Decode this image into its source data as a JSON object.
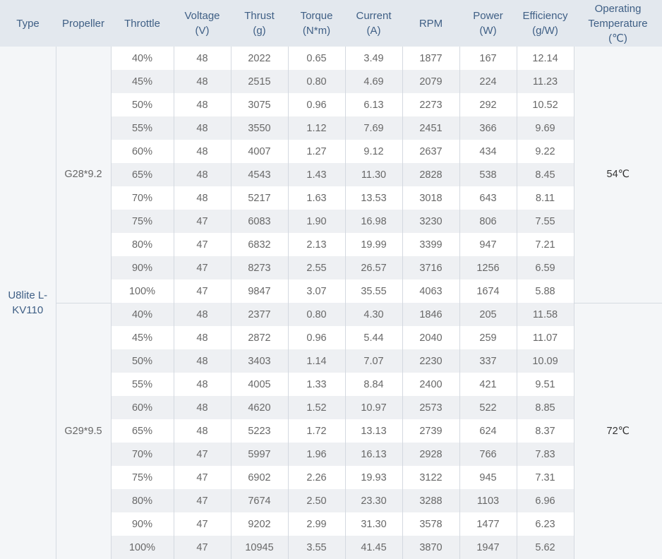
{
  "headers": [
    "Type",
    "Propeller",
    "Throttle",
    "Voltage\n(V)",
    "Thrust\n(g)",
    "Torque\n(N*m)",
    "Current\n(A)",
    "RPM",
    "Power\n(W)",
    "Efficiency\n(g/W)",
    "Operating\nTemperature\n(℃)"
  ],
  "type": "U8lite L-\nKV110",
  "groups": [
    {
      "propeller": "G28*9.2",
      "temperature": "54℃",
      "rows": [
        [
          "40%",
          "48",
          "2022",
          "0.65",
          "3.49",
          "1877",
          "167",
          "12.14"
        ],
        [
          "45%",
          "48",
          "2515",
          "0.80",
          "4.69",
          "2079",
          "224",
          "11.23"
        ],
        [
          "50%",
          "48",
          "3075",
          "0.96",
          "6.13",
          "2273",
          "292",
          "10.52"
        ],
        [
          "55%",
          "48",
          "3550",
          "1.12",
          "7.69",
          "2451",
          "366",
          "9.69"
        ],
        [
          "60%",
          "48",
          "4007",
          "1.27",
          "9.12",
          "2637",
          "434",
          "9.22"
        ],
        [
          "65%",
          "48",
          "4543",
          "1.43",
          "11.30",
          "2828",
          "538",
          "8.45"
        ],
        [
          "70%",
          "48",
          "5217",
          "1.63",
          "13.53",
          "3018",
          "643",
          "8.11"
        ],
        [
          "75%",
          "47",
          "6083",
          "1.90",
          "16.98",
          "3230",
          "806",
          "7.55"
        ],
        [
          "80%",
          "47",
          "6832",
          "2.13",
          "19.99",
          "3399",
          "947",
          "7.21"
        ],
        [
          "90%",
          "47",
          "8273",
          "2.55",
          "26.57",
          "3716",
          "1256",
          "6.59"
        ],
        [
          "100%",
          "47",
          "9847",
          "3.07",
          "35.55",
          "4063",
          "1674",
          "5.88"
        ]
      ]
    },
    {
      "propeller": "G29*9.5",
      "temperature": "72℃",
      "rows": [
        [
          "40%",
          "48",
          "2377",
          "0.80",
          "4.30",
          "1846",
          "205",
          "11.58"
        ],
        [
          "45%",
          "48",
          "2872",
          "0.96",
          "5.44",
          "2040",
          "259",
          "11.07"
        ],
        [
          "50%",
          "48",
          "3403",
          "1.14",
          "7.07",
          "2230",
          "337",
          "10.09"
        ],
        [
          "55%",
          "48",
          "4005",
          "1.33",
          "8.84",
          "2400",
          "421",
          "9.51"
        ],
        [
          "60%",
          "48",
          "4620",
          "1.52",
          "10.97",
          "2573",
          "522",
          "8.85"
        ],
        [
          "65%",
          "48",
          "5223",
          "1.72",
          "13.13",
          "2739",
          "624",
          "8.37"
        ],
        [
          "70%",
          "47",
          "5997",
          "1.96",
          "16.13",
          "2928",
          "766",
          "7.83"
        ],
        [
          "75%",
          "47",
          "6902",
          "2.26",
          "19.93",
          "3122",
          "945",
          "7.31"
        ],
        [
          "80%",
          "47",
          "7674",
          "2.50",
          "23.30",
          "3288",
          "1103",
          "6.96"
        ],
        [
          "90%",
          "47",
          "9202",
          "2.99",
          "31.30",
          "3578",
          "1477",
          "6.23"
        ],
        [
          "100%",
          "47",
          "10945",
          "3.55",
          "41.45",
          "3870",
          "1947",
          "5.62"
        ]
      ]
    }
  ]
}
